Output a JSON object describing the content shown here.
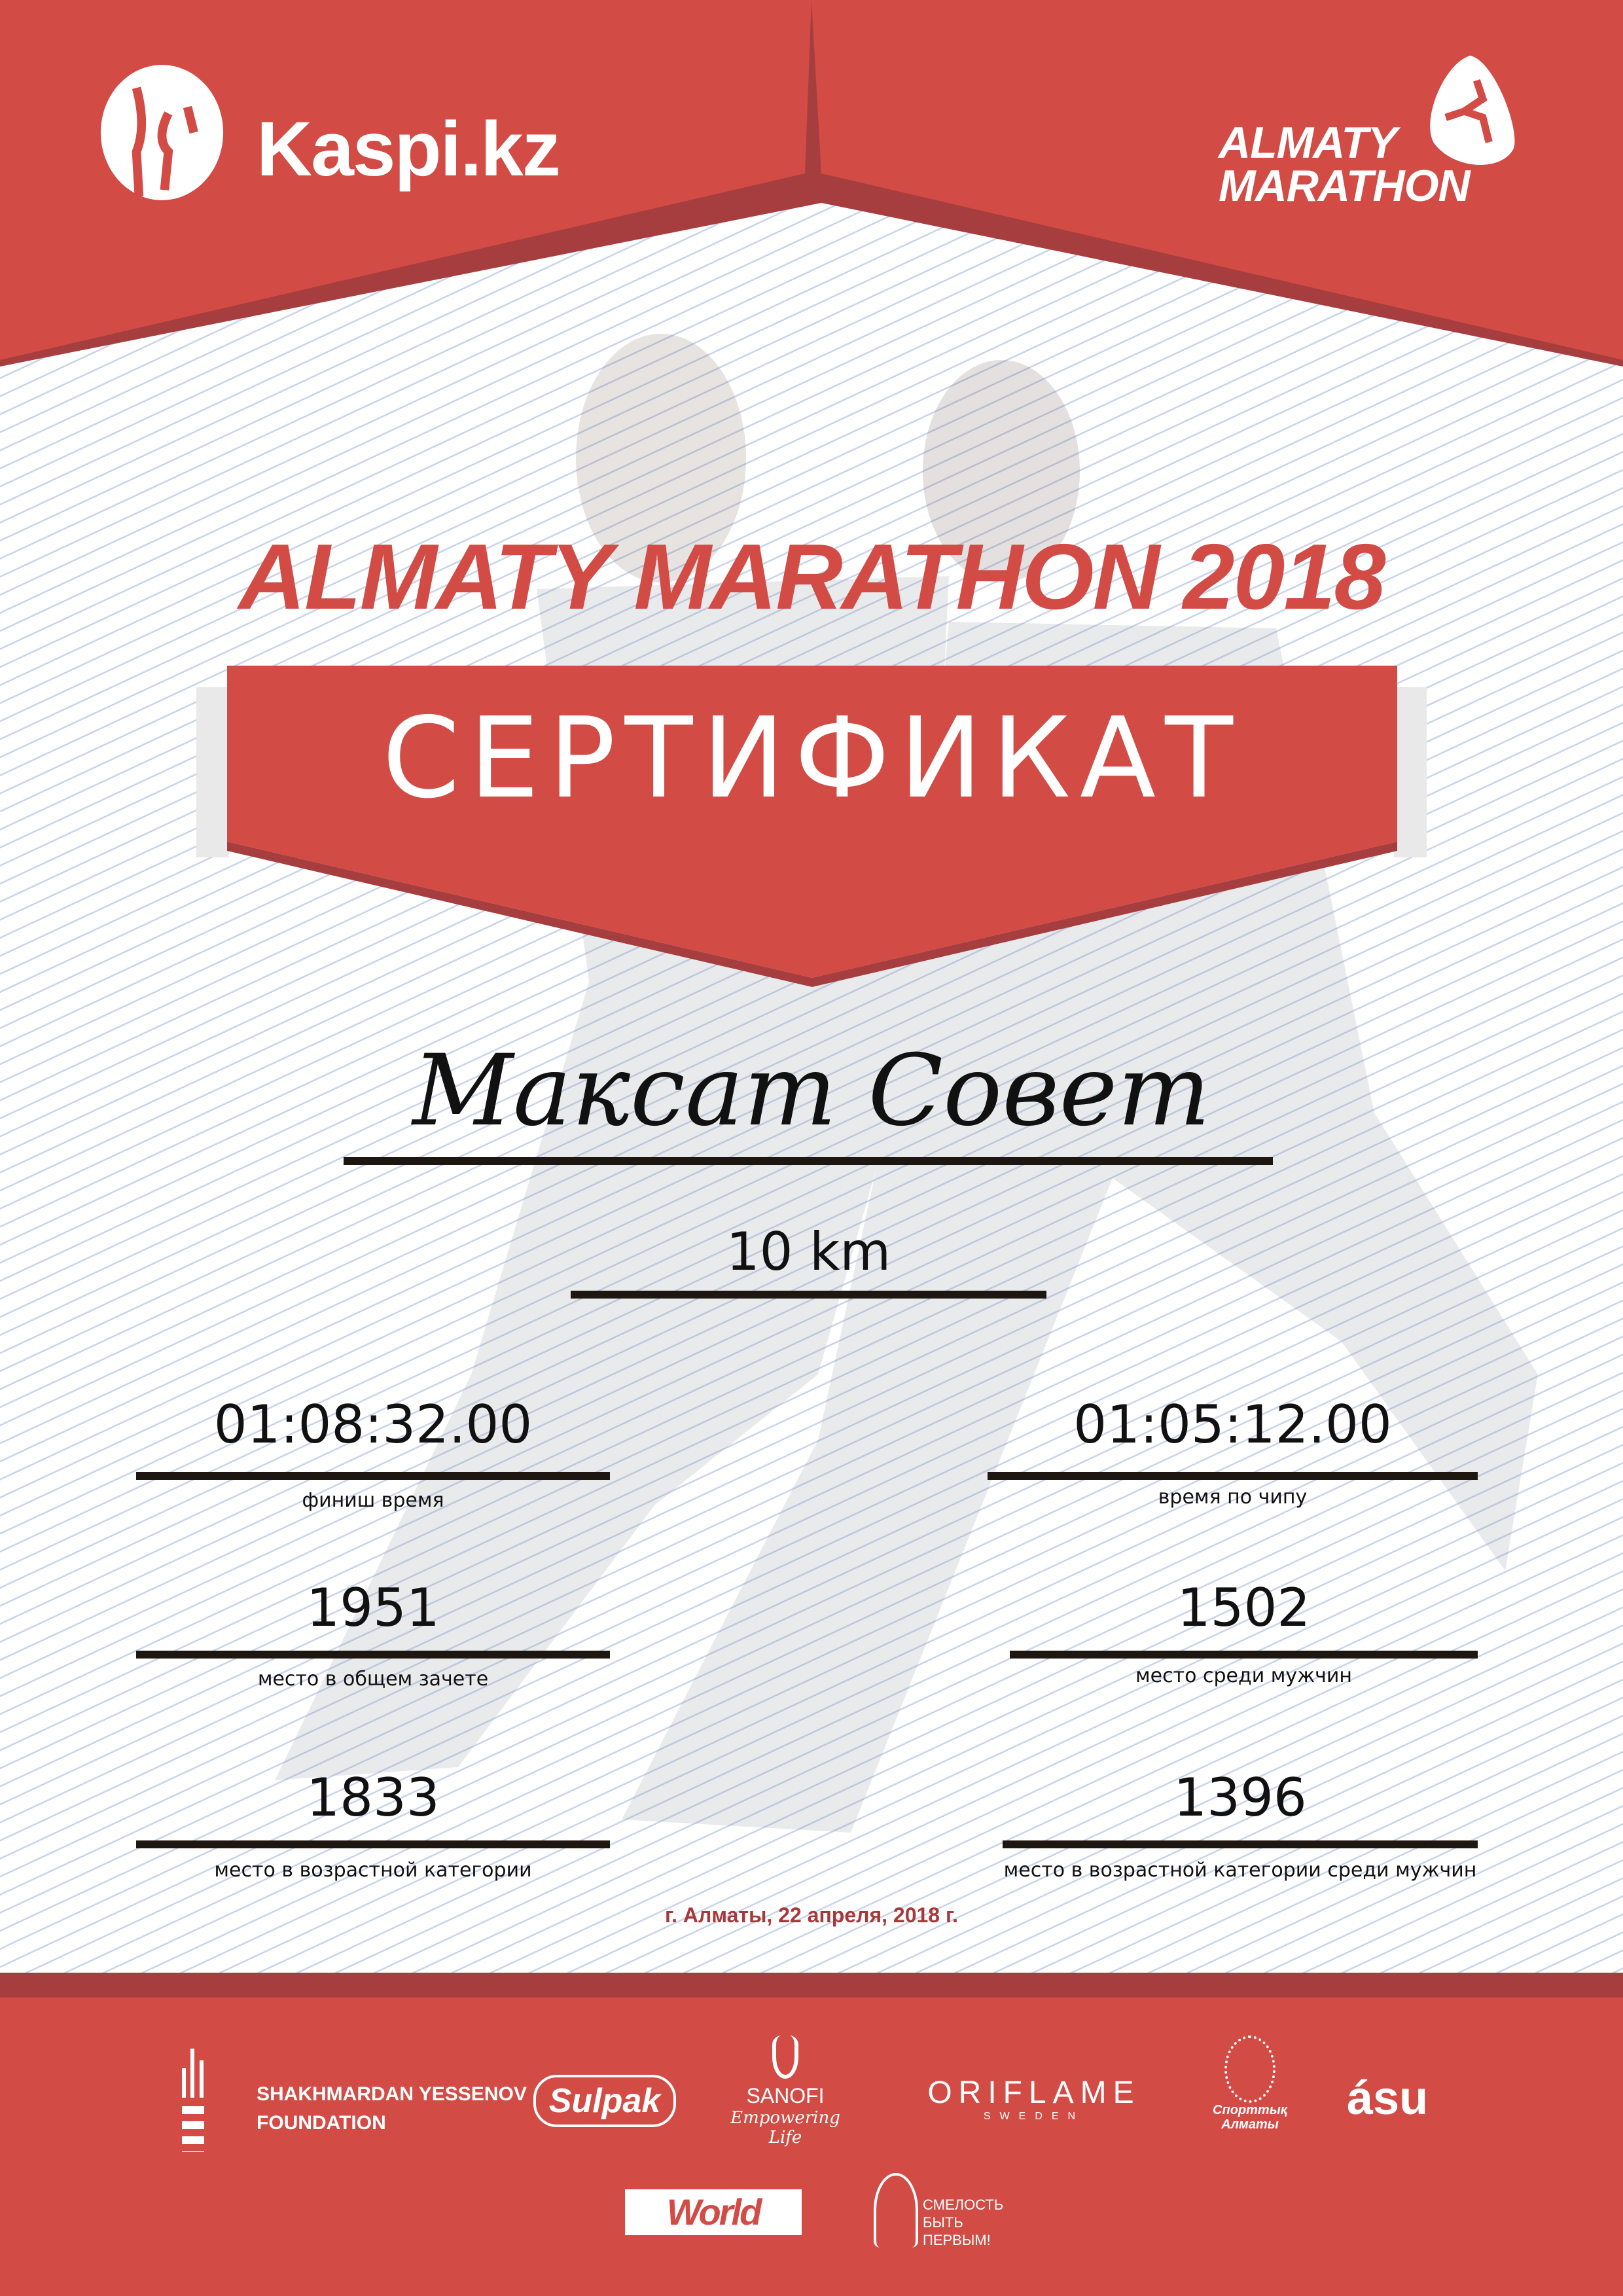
{
  "header": {
    "left_logo": "Kaspi.kz",
    "right_logo": [
      "ALMATY",
      "MARATHON"
    ]
  },
  "title": "ALMATY MARATHON 2018",
  "certificate_label": "СЕРТИФИКАТ",
  "participant_name": "Максат Совет",
  "distance": "10 km",
  "results": {
    "finish_time": {
      "value": "01:08:32.00",
      "label": "финиш время"
    },
    "chip_time": {
      "value": "01:05:12.00",
      "label": "время по чипу"
    },
    "overall_place": {
      "value": "1951",
      "label": "место в общем зачете"
    },
    "place_men": {
      "value": "1502",
      "label": "место среди мужчин"
    },
    "age_category_place": {
      "value": "1833",
      "label": "место в возрастной категории"
    },
    "age_category_men_place": {
      "value": "1396",
      "label": "место в возрастной категории среди мужчин"
    }
  },
  "date_line": "г. Алматы, 22 апреля, 2018 г.",
  "sponsors": {
    "yessenov": [
      "SHAKHMARDAN YESSENOV",
      "FOUNDATION"
    ],
    "sulpak": "Sulpak",
    "sanofi": [
      "SANOFI",
      "Empowering Life"
    ],
    "oriflame": [
      "ORIFLAME",
      "SWEDEN"
    ],
    "sport_almaty": [
      "Спорттық",
      "Алматы"
    ],
    "asu": "ásu",
    "world_class": "World Class",
    "smelost": [
      "СМЕЛОСТЬ",
      "БЫТЬ",
      "ПЕРВЫМ!"
    ]
  },
  "colors": {
    "brand_red": "#d24b45",
    "dark_red": "#a63e3f",
    "line_blue": "#c9d3ea"
  }
}
